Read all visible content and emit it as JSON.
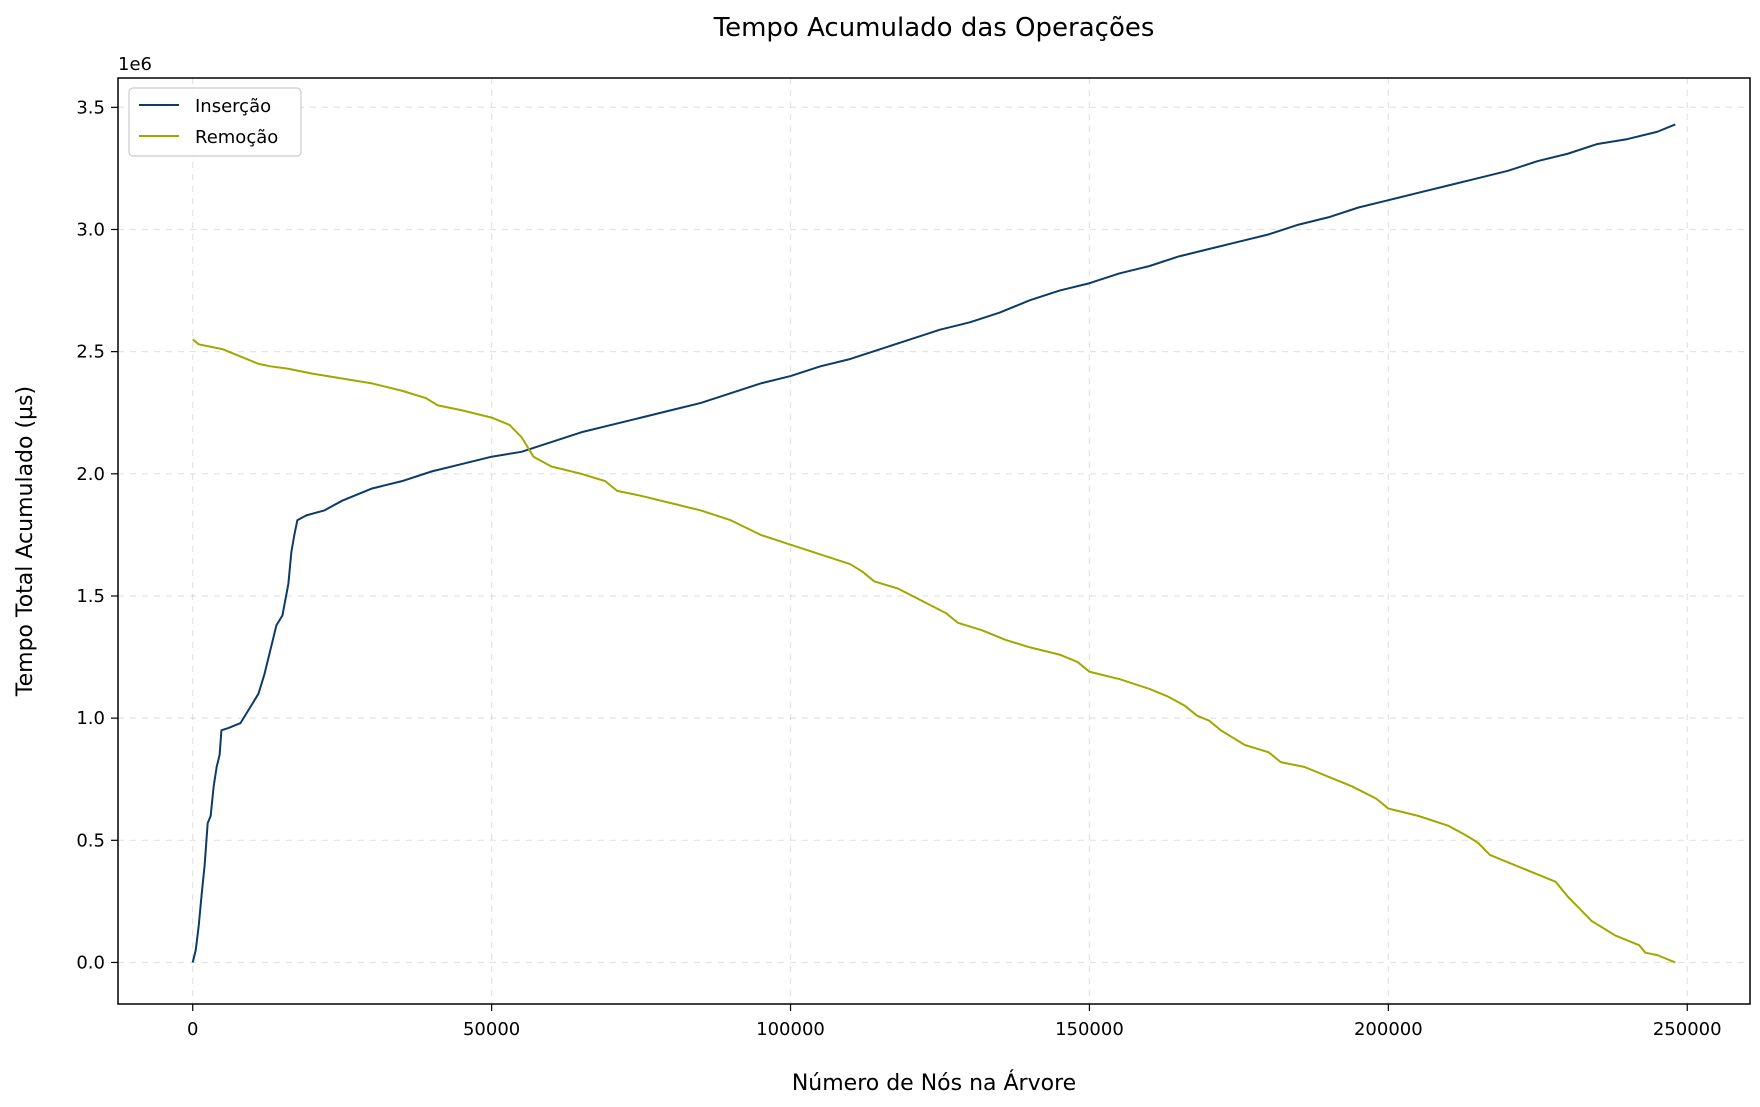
{
  "chart_data": {
    "type": "line",
    "title": "Tempo Acumulado das Operações",
    "xlabel": "Número de Nós na Árvore",
    "ylabel": "Tempo Total Acumulado (µs)",
    "y_offset_label": "1e6",
    "xlim": [
      -12500,
      260500
    ],
    "ylim": [
      -0.17,
      3.62
    ],
    "x_ticks": [
      0,
      50000,
      100000,
      150000,
      200000,
      250000
    ],
    "x_tick_labels": [
      "0",
      "50000",
      "100000",
      "150000",
      "200000",
      "250000"
    ],
    "y_ticks": [
      0,
      0.5,
      1.0,
      1.5,
      2.0,
      2.5,
      3.0,
      3.5
    ],
    "y_tick_labels": [
      "0.0",
      "0.5",
      "1.0",
      "1.5",
      "2.0",
      "2.5",
      "3.0",
      "3.5"
    ],
    "grid": true,
    "legend_position": "top-left",
    "series": [
      {
        "name": "Inserção",
        "color": "#0d3b66",
        "points": [
          [
            0,
            0
          ],
          [
            500,
            0.05
          ],
          [
            1000,
            0.15
          ],
          [
            1500,
            0.28
          ],
          [
            2000,
            0.4
          ],
          [
            2500,
            0.57
          ],
          [
            3000,
            0.6
          ],
          [
            3500,
            0.72
          ],
          [
            4000,
            0.8
          ],
          [
            4500,
            0.85
          ],
          [
            4800,
            0.95
          ],
          [
            6000,
            0.96
          ],
          [
            8000,
            0.98
          ],
          [
            9000,
            1.02
          ],
          [
            10000,
            1.06
          ],
          [
            11000,
            1.1
          ],
          [
            12000,
            1.18
          ],
          [
            13000,
            1.28
          ],
          [
            14000,
            1.38
          ],
          [
            15000,
            1.42
          ],
          [
            16000,
            1.55
          ],
          [
            16500,
            1.68
          ],
          [
            17000,
            1.75
          ],
          [
            17500,
            1.81
          ],
          [
            19000,
            1.83
          ],
          [
            22000,
            1.85
          ],
          [
            25000,
            1.89
          ],
          [
            30000,
            1.94
          ],
          [
            35000,
            1.97
          ],
          [
            40000,
            2.01
          ],
          [
            45000,
            2.04
          ],
          [
            50000,
            2.07
          ],
          [
            55000,
            2.09
          ],
          [
            60000,
            2.13
          ],
          [
            65000,
            2.17
          ],
          [
            70000,
            2.2
          ],
          [
            75000,
            2.23
          ],
          [
            80000,
            2.26
          ],
          [
            85000,
            2.29
          ],
          [
            90000,
            2.33
          ],
          [
            95000,
            2.37
          ],
          [
            100000,
            2.4
          ],
          [
            105000,
            2.44
          ],
          [
            110000,
            2.47
          ],
          [
            115000,
            2.51
          ],
          [
            120000,
            2.55
          ],
          [
            125000,
            2.59
          ],
          [
            130000,
            2.62
          ],
          [
            135000,
            2.66
          ],
          [
            140000,
            2.71
          ],
          [
            145000,
            2.75
          ],
          [
            150000,
            2.78
          ],
          [
            155000,
            2.82
          ],
          [
            160000,
            2.85
          ],
          [
            165000,
            2.89
          ],
          [
            170000,
            2.92
          ],
          [
            175000,
            2.95
          ],
          [
            180000,
            2.98
          ],
          [
            185000,
            3.02
          ],
          [
            190000,
            3.05
          ],
          [
            195000,
            3.09
          ],
          [
            200000,
            3.12
          ],
          [
            205000,
            3.15
          ],
          [
            210000,
            3.18
          ],
          [
            215000,
            3.21
          ],
          [
            220000,
            3.24
          ],
          [
            225000,
            3.28
          ],
          [
            230000,
            3.31
          ],
          [
            235000,
            3.35
          ],
          [
            240000,
            3.37
          ],
          [
            245000,
            3.4
          ],
          [
            248000,
            3.43
          ]
        ]
      },
      {
        "name": "Remoção",
        "color": "#9ea900",
        "points": [
          [
            0,
            2.55
          ],
          [
            1000,
            2.53
          ],
          [
            3000,
            2.52
          ],
          [
            5000,
            2.51
          ],
          [
            7000,
            2.49
          ],
          [
            9000,
            2.47
          ],
          [
            11000,
            2.45
          ],
          [
            13000,
            2.44
          ],
          [
            16000,
            2.43
          ],
          [
            20000,
            2.41
          ],
          [
            25000,
            2.39
          ],
          [
            30000,
            2.37
          ],
          [
            35000,
            2.34
          ],
          [
            39000,
            2.31
          ],
          [
            41000,
            2.28
          ],
          [
            45000,
            2.26
          ],
          [
            50000,
            2.23
          ],
          [
            53000,
            2.2
          ],
          [
            55000,
            2.15
          ],
          [
            57000,
            2.07
          ],
          [
            60000,
            2.03
          ],
          [
            65000,
            2.0
          ],
          [
            69000,
            1.97
          ],
          [
            71000,
            1.93
          ],
          [
            75000,
            1.91
          ],
          [
            80000,
            1.88
          ],
          [
            85000,
            1.85
          ],
          [
            90000,
            1.81
          ],
          [
            95000,
            1.75
          ],
          [
            100000,
            1.71
          ],
          [
            105000,
            1.67
          ],
          [
            110000,
            1.63
          ],
          [
            112000,
            1.6
          ],
          [
            114000,
            1.56
          ],
          [
            118000,
            1.53
          ],
          [
            122000,
            1.48
          ],
          [
            126000,
            1.43
          ],
          [
            128000,
            1.39
          ],
          [
            132000,
            1.36
          ],
          [
            136000,
            1.32
          ],
          [
            140000,
            1.29
          ],
          [
            145000,
            1.26
          ],
          [
            148000,
            1.23
          ],
          [
            150000,
            1.19
          ],
          [
            155000,
            1.16
          ],
          [
            160000,
            1.12
          ],
          [
            163000,
            1.09
          ],
          [
            166000,
            1.05
          ],
          [
            168000,
            1.01
          ],
          [
            170000,
            0.99
          ],
          [
            172000,
            0.95
          ],
          [
            174000,
            0.92
          ],
          [
            176000,
            0.89
          ],
          [
            180000,
            0.86
          ],
          [
            182000,
            0.82
          ],
          [
            186000,
            0.8
          ],
          [
            190000,
            0.76
          ],
          [
            194000,
            0.72
          ],
          [
            198000,
            0.67
          ],
          [
            200000,
            0.63
          ],
          [
            205000,
            0.6
          ],
          [
            210000,
            0.56
          ],
          [
            213000,
            0.52
          ],
          [
            215000,
            0.49
          ],
          [
            217000,
            0.44
          ],
          [
            220000,
            0.41
          ],
          [
            224000,
            0.37
          ],
          [
            228000,
            0.33
          ],
          [
            230000,
            0.27
          ],
          [
            232000,
            0.22
          ],
          [
            234000,
            0.17
          ],
          [
            238000,
            0.11
          ],
          [
            242000,
            0.07
          ],
          [
            243000,
            0.04
          ],
          [
            245000,
            0.03
          ],
          [
            248000,
            0.0
          ]
        ]
      }
    ]
  }
}
